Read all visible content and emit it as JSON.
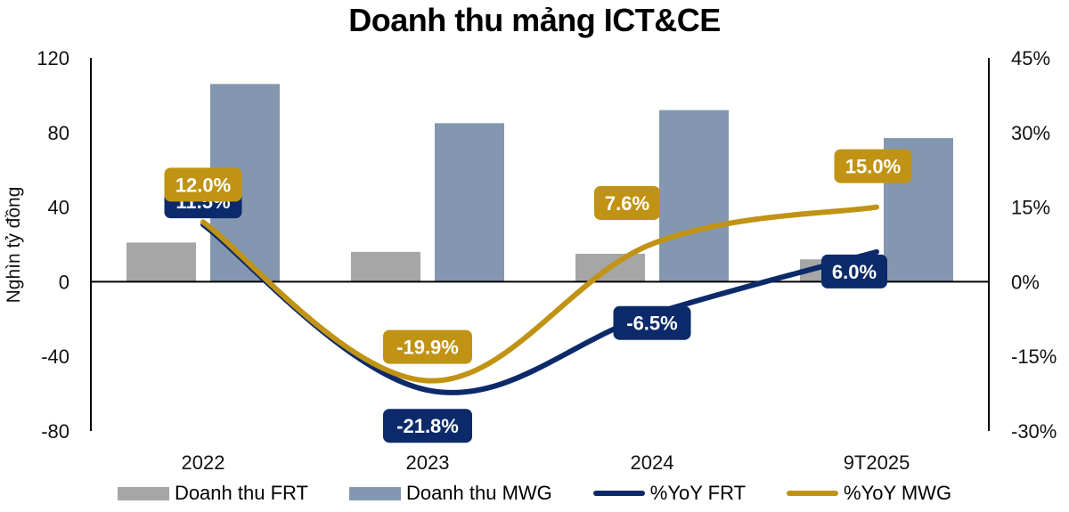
{
  "chart_data": {
    "type": "bar+line",
    "title": "Doanh thu mảng ICT&CE",
    "ylabel": "Nghìn tỷ đồng",
    "y2label": "",
    "categories": [
      "2022",
      "2023",
      "2024",
      "9T2025"
    ],
    "ylim": [
      -80,
      120
    ],
    "y_ticks": [
      "120",
      "80",
      "40",
      "0",
      "-40",
      "-80"
    ],
    "y2lim": [
      -30,
      45
    ],
    "y2_ticks": [
      "45%",
      "30%",
      "15%",
      "0%",
      "-15%",
      "-30%"
    ],
    "series": [
      {
        "name": "Doanh thu FRT",
        "type": "bar",
        "axis": "left",
        "color": "#a6a6a6",
        "values": [
          21,
          16,
          15,
          12
        ]
      },
      {
        "name": "Doanh thu MWG",
        "type": "bar",
        "axis": "left",
        "color": "#8497b0",
        "values": [
          106,
          85,
          92,
          77
        ]
      },
      {
        "name": "%YoY FRT",
        "type": "line",
        "axis": "right",
        "color": "#0c2a6a",
        "values": [
          11.5,
          -21.8,
          -6.5,
          6.0
        ],
        "labels": [
          "11.5%",
          "-21.8%",
          "-6.5%",
          "6.0%"
        ]
      },
      {
        "name": "%YoY MWG",
        "type": "line",
        "axis": "right",
        "color": "#c09314",
        "values": [
          12.0,
          -19.9,
          7.6,
          15.0
        ],
        "labels": [
          "12.0%",
          "-19.9%",
          "7.6%",
          "15.0%"
        ]
      }
    ],
    "grid": false,
    "legend_position": "bottom"
  },
  "legend": [
    {
      "label": "Doanh thu FRT",
      "color": "#a6a6a6",
      "kind": "bar"
    },
    {
      "label": "Doanh thu MWG",
      "color": "#8497b0",
      "kind": "bar"
    },
    {
      "label": "%YoY FRT",
      "color": "#0c2a6a",
      "kind": "line"
    },
    {
      "label": "%YoY MWG",
      "color": "#c09314",
      "kind": "line"
    }
  ]
}
